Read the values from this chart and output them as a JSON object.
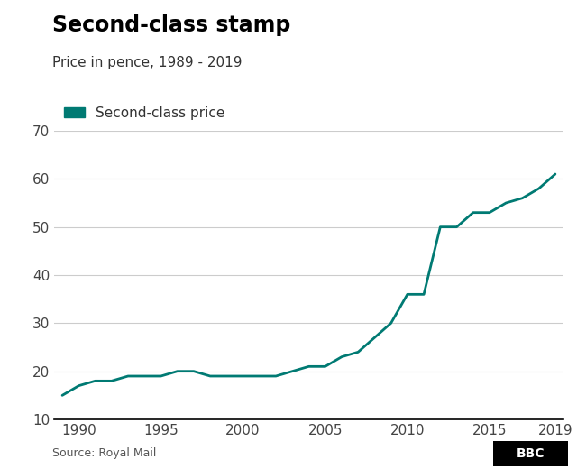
{
  "title": "Second-class stamp",
  "subtitle": "Price in pence, 1989 - 2019",
  "legend_label": "Second-class price",
  "line_color": "#007a73",
  "source_text": "Source: Royal Mail",
  "bbc_text": "BBC",
  "years": [
    1989,
    1990,
    1991,
    1992,
    1993,
    1994,
    1995,
    1996,
    1997,
    1998,
    1999,
    2000,
    2001,
    2002,
    2003,
    2004,
    2005,
    2006,
    2007,
    2008,
    2009,
    2010,
    2011,
    2012,
    2013,
    2014,
    2015,
    2016,
    2017,
    2018,
    2019
  ],
  "prices": [
    15,
    17,
    18,
    18,
    19,
    19,
    19,
    20,
    20,
    19,
    19,
    19,
    19,
    19,
    20,
    21,
    21,
    23,
    24,
    27,
    30,
    36,
    36,
    50,
    50,
    53,
    53,
    55,
    56,
    58,
    61
  ],
  "ylim": [
    10,
    70
  ],
  "xlim": [
    1988.5,
    2019.5
  ],
  "yticks": [
    10,
    20,
    30,
    40,
    50,
    60,
    70
  ],
  "xticks": [
    1990,
    1995,
    2000,
    2005,
    2010,
    2015,
    2019
  ],
  "background_color": "#ffffff",
  "grid_color": "#cccccc",
  "title_fontsize": 17,
  "subtitle_fontsize": 11,
  "legend_fontsize": 11,
  "tick_fontsize": 11,
  "source_fontsize": 9,
  "bbc_fontsize": 10,
  "line_width": 2.0
}
